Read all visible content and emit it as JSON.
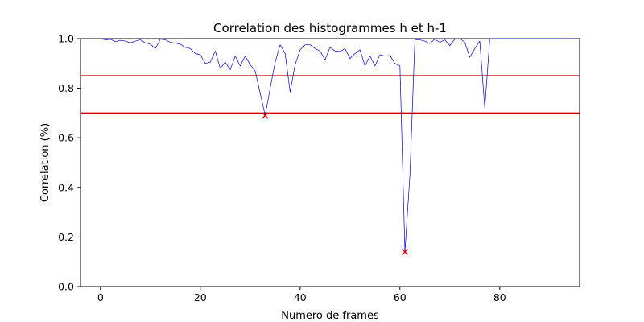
{
  "chart_data": {
    "type": "line",
    "title": "Correlation des histogrammes h et h-1",
    "xlabel": "Numero de frames",
    "ylabel": "Correlation (%)",
    "xlim": [
      -4,
      96
    ],
    "ylim": [
      0.0,
      1.0
    ],
    "x_ticks": [
      0,
      20,
      40,
      60,
      80
    ],
    "y_ticks": [
      0.0,
      0.2,
      0.4,
      0.6,
      0.8,
      1.0
    ],
    "x_tick_labels": [
      "0",
      "20",
      "40",
      "60",
      "80"
    ],
    "y_tick_labels": [
      "0.0",
      "0.2",
      "0.4",
      "0.6",
      "0.8",
      "1.0"
    ],
    "grid": false,
    "series": [
      {
        "color": "#0000cc",
        "x": [
          0,
          1,
          2,
          3,
          4,
          5,
          6,
          7,
          8,
          9,
          10,
          11,
          12,
          13,
          14,
          15,
          16,
          17,
          18,
          19,
          20,
          21,
          22,
          23,
          24,
          25,
          26,
          27,
          28,
          29,
          30,
          31,
          32,
          33,
          34,
          35,
          36,
          37,
          38,
          39,
          40,
          41,
          42,
          43,
          44,
          45,
          46,
          47,
          48,
          49,
          50,
          51,
          52,
          53,
          54,
          55,
          56,
          57,
          58,
          59,
          60,
          61,
          62,
          63,
          64,
          65,
          66,
          67,
          68,
          69,
          70,
          71,
          72,
          73,
          74,
          75,
          76,
          77,
          78,
          79,
          80,
          81,
          82,
          83,
          84,
          85,
          86,
          87,
          88,
          89,
          90,
          91,
          92,
          93,
          94,
          95
        ],
        "y": [
          1.0,
          0.995,
          0.997,
          0.988,
          0.993,
          0.99,
          0.983,
          0.99,
          0.995,
          0.983,
          0.978,
          0.96,
          0.998,
          0.995,
          0.985,
          0.982,
          0.978,
          0.965,
          0.96,
          0.94,
          0.935,
          0.9,
          0.905,
          0.95,
          0.88,
          0.905,
          0.875,
          0.93,
          0.89,
          0.93,
          0.895,
          0.87,
          0.78,
          0.69,
          0.8,
          0.905,
          0.975,
          0.94,
          0.785,
          0.895,
          0.955,
          0.975,
          0.975,
          0.96,
          0.95,
          0.915,
          0.965,
          0.95,
          0.948,
          0.96,
          0.92,
          0.94,
          0.955,
          0.89,
          0.93,
          0.89,
          0.935,
          0.93,
          0.932,
          0.9,
          0.89,
          0.14,
          0.45,
          0.995,
          0.995,
          0.99,
          0.98,
          0.998,
          0.985,
          0.995,
          0.972,
          0.998,
          1.0,
          0.985,
          0.925,
          0.96,
          0.99,
          0.72,
          1.0,
          1.0,
          1.0,
          1.0,
          1.0,
          1.0,
          1.0,
          1.0,
          1.0,
          1.0,
          1.0,
          1.0,
          1.0,
          1.0,
          1.0,
          1.0,
          1.0,
          1.0
        ]
      }
    ],
    "thresholds": [
      {
        "y": 0.85,
        "color": "#cc0000"
      },
      {
        "y": 0.7,
        "color": "#cc0000"
      }
    ],
    "markers": [
      {
        "x": 33,
        "y": 0.69,
        "color": "#dd0000"
      },
      {
        "x": 61,
        "y": 0.14,
        "color": "#dd0000"
      }
    ]
  }
}
